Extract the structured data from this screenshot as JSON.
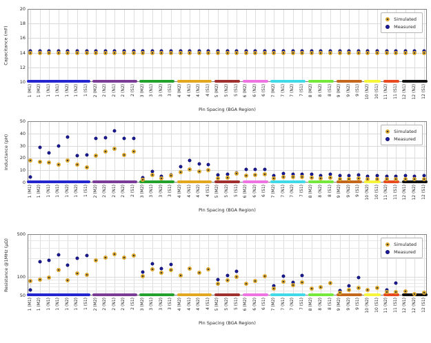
{
  "figure": {
    "background": "#ffffff"
  },
  "legend": {
    "items": [
      {
        "label": "Simulated",
        "marker_fill": "#d9a62a",
        "marker_center": "#3b3b3b"
      },
      {
        "label": "Measured",
        "marker_fill": "#1b1b9f"
      }
    ]
  },
  "chart_data": [
    {
      "type": "scatter",
      "ylabel": "Capacitance (mF)",
      "xlabel": "Pin Spacing (BGA Region)",
      "scale": "linear",
      "ylim": [
        10,
        20
      ],
      "yticks": [
        10,
        12,
        14,
        16,
        18,
        20
      ],
      "minor_yticks": [],
      "grid": true,
      "legend_position": "upper-right",
      "series": [
        {
          "name": "Simulated",
          "values": [
            14,
            14,
            14,
            14,
            14,
            14,
            14,
            14,
            14,
            14,
            14,
            14,
            14,
            14,
            14,
            14,
            14,
            14,
            14,
            14,
            14,
            14,
            14,
            14,
            14,
            14,
            14,
            14,
            14,
            14,
            14,
            14,
            14,
            14,
            14,
            14,
            14,
            14,
            14,
            14,
            14,
            14,
            14
          ]
        },
        {
          "name": "Measured",
          "values": [
            14.2,
            14.2,
            14.2,
            14.2,
            14.2,
            14.2,
            14.2,
            14.2,
            14.2,
            14.2,
            14.2,
            14.2,
            14.2,
            14.2,
            14.2,
            14.2,
            14.2,
            14.2,
            14.2,
            14.2,
            14.2,
            14.2,
            14.2,
            14.2,
            14.2,
            14.2,
            14.2,
            14.2,
            14.2,
            14.2,
            14.2,
            14.2,
            14.2,
            14.2,
            14.2,
            14.2,
            14.2,
            14.2,
            14.2,
            14.2,
            14.2,
            14.2,
            14.2
          ]
        }
      ]
    },
    {
      "type": "scatter",
      "ylabel": "Inductance (pH)",
      "xlabel": "Pin Spacing (BGA Region)",
      "scale": "linear",
      "ylim": [
        0,
        50
      ],
      "yticks": [
        0,
        10,
        20,
        30,
        40,
        50
      ],
      "minor_yticks": [],
      "grid": true,
      "legend_position": "upper-right",
      "series": [
        {
          "name": "Simulated",
          "values": [
            18,
            17,
            16.3,
            14.4,
            18,
            14.4,
            12.5,
            22,
            25.3,
            27.7,
            22.5,
            25.5,
            2.5,
            6,
            3.2,
            5.5,
            8.4,
            10.7,
            8.8,
            10,
            3.2,
            3.9,
            7.3,
            5.5,
            6.2,
            7,
            3.2,
            4.7,
            4.3,
            4.3,
            3.7,
            3.2,
            3.7,
            3,
            3,
            3.2,
            2.8,
            3,
            2.6,
            2.8,
            3,
            2.6,
            3
          ]
        },
        {
          "name": "Measured",
          "values": [
            4.5,
            28.5,
            24,
            29.8,
            37.3,
            22,
            22.5,
            36,
            36.7,
            42.3,
            36,
            36,
            3.8,
            8.8,
            5.1,
            6.3,
            13,
            18,
            15,
            14.8,
            6.2,
            6.9,
            8,
            10.7,
            10.7,
            10.4,
            5.6,
            7.5,
            6.9,
            6.9,
            6.6,
            5.6,
            6.6,
            5.5,
            5.8,
            6,
            5.2,
            5.5,
            5,
            5.2,
            5.8,
            5,
            5.5
          ]
        }
      ]
    },
    {
      "type": "scatter",
      "ylabel": "Resistance @1MHz (μΩ)",
      "xlabel": "Pin Spacing (BGA Region)",
      "scale": "log",
      "ylim": [
        50,
        500
      ],
      "yticks": [
        50,
        100,
        500
      ],
      "minor_yticks": [
        60,
        70,
        80,
        90,
        200,
        300,
        400
      ],
      "grid": true,
      "legend_position": "upper-right",
      "series": [
        {
          "name": "Simulated",
          "values": [
            86,
            91,
            99,
            129,
            88,
            114,
            109,
            186,
            209,
            238,
            207,
            224,
            102,
            132,
            117,
            130,
            106,
            138,
            116,
            135,
            78,
            89,
            100,
            78,
            86,
            102,
            64,
            84,
            74,
            81,
            65,
            69,
            80,
            56,
            62,
            66,
            61,
            66,
            57,
            57,
            58,
            53,
            55
          ]
        },
        {
          "name": "Measured",
          "values": [
            61,
            176,
            187,
            228,
            157,
            200,
            224,
            186,
            209,
            238,
            207,
            224,
            122,
            165,
            138,
            161,
            106,
            138,
            116,
            135,
            91,
            106,
            124,
            78,
            86,
            102,
            72,
            103,
            82,
            106,
            65,
            69,
            80,
            60,
            71,
            97,
            61,
            66,
            62,
            80,
            58,
            53,
            55
          ]
        }
      ]
    }
  ],
  "categories": [
    "1 (M1)",
    "1 (M2)",
    "1 (N1)",
    "1 (N1)",
    "1 (N2)",
    "1 (N2)",
    "1 (S1)",
    "2 (M2)",
    "2 (N2)",
    "2 (N1)",
    "2 (N2)",
    "2 (S1)",
    "3 (M2)",
    "3 (N1)",
    "3 (N2)",
    "3 (S1)",
    "4 (M2)",
    "4 (N1)",
    "4 (N2)",
    "4 (S1)",
    "5 (M2)",
    "5 (N2)",
    "5 (S1)",
    "6 (M2)",
    "6 (N2)",
    "6 (S1)",
    "7 (M2)",
    "7 (N1)",
    "7 (N2)",
    "7 (S1)",
    "8 (M2)",
    "8 (N2)",
    "8 (S1)",
    "9 (M2)",
    "9 (N2)",
    "9 (S1)",
    "10 (N2)",
    "10 (S1)",
    "11 (N2)",
    "11 (S1)",
    "12 (N1)",
    "12 (N2)",
    "12 (S1)"
  ],
  "bga_region_groups": [
    {
      "label": "1",
      "start": 0,
      "end": 6,
      "color": "#2525cf"
    },
    {
      "label": "2",
      "start": 7,
      "end": 11,
      "color": "#7a3b96"
    },
    {
      "label": "3",
      "start": 12,
      "end": 15,
      "color": "#22a12c"
    },
    {
      "label": "4",
      "start": 16,
      "end": 19,
      "color": "#e2a71e"
    },
    {
      "label": "5",
      "start": 20,
      "end": 22,
      "color": "#a03030"
    },
    {
      "label": "6",
      "start": 23,
      "end": 25,
      "color": "#ee72e2"
    },
    {
      "label": "7",
      "start": 26,
      "end": 29,
      "color": "#3fd9e8"
    },
    {
      "label": "8",
      "start": 30,
      "end": 32,
      "color": "#74e93c"
    },
    {
      "label": "9",
      "start": 33,
      "end": 35,
      "color": "#c2671c"
    },
    {
      "label": "10",
      "start": 36,
      "end": 37,
      "color": "#f5f53a"
    },
    {
      "label": "11",
      "start": 38,
      "end": 39,
      "color": "#e8491f"
    },
    {
      "label": "12",
      "start": 40,
      "end": 42,
      "color": "#121212"
    }
  ]
}
